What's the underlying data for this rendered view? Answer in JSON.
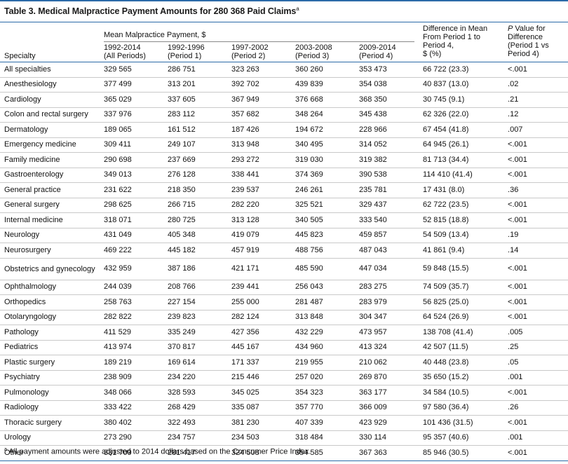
{
  "title": "Table 3. Medical Malpractice Payment Amounts for 280 368 Paid Claims",
  "title_marker": "a",
  "header": {
    "specialty": "Specialty",
    "group": "Mean Malpractice Payment, $",
    "cols": [
      {
        "line1": "1992-2014",
        "line2": "(All Periods)"
      },
      {
        "line1": "1992-1996",
        "line2": "(Period 1)"
      },
      {
        "line1": "1997-2002",
        "line2": "(Period 2)"
      },
      {
        "line1": "2003-2008",
        "line2": "(Period 3)"
      },
      {
        "line1": "2009-2014",
        "line2": "(Period 4)"
      }
    ],
    "diff": {
      "l1": "Difference in Mean",
      "l2": "From Period 1 to",
      "l3": "Period 4,",
      "l4": "$ (%)"
    },
    "pval": {
      "italic": "P",
      "l1": " Value for",
      "l2": "Difference",
      "l3": "(Period 1 vs",
      "l4": "Period 4)"
    }
  },
  "rows": [
    {
      "specialty": "All specialties",
      "v": [
        "329 565",
        "286 751",
        "323 263",
        "360 260",
        "353 473"
      ],
      "diff": "66 722 (23.3)",
      "p": "<.001"
    },
    {
      "specialty": "Anesthesiology",
      "v": [
        "377 499",
        "313 201",
        "392 702",
        "439 839",
        "354 038"
      ],
      "diff": "40 837 (13.0)",
      "p": ".02"
    },
    {
      "specialty": "Cardiology",
      "v": [
        "365 029",
        "337 605",
        "367 949",
        "376 668",
        "368 350"
      ],
      "diff": "30 745 (9.1)",
      "p": ".21"
    },
    {
      "specialty": "Colon and rectal surgery",
      "v": [
        "337 976",
        "283 112",
        "357 682",
        "348 264",
        "345 438"
      ],
      "diff": "62 326 (22.0)",
      "p": ".12"
    },
    {
      "specialty": "Dermatology",
      "v": [
        "189 065",
        "161 512",
        "187 426",
        "194 672",
        "228 966"
      ],
      "diff": "67 454 (41.8)",
      "p": ".007"
    },
    {
      "specialty": "Emergency medicine",
      "v": [
        "309 411",
        "249 107",
        "313 948",
        "340 495",
        "314 052"
      ],
      "diff": "64 945 (26.1)",
      "p": "<.001"
    },
    {
      "specialty": "Family medicine",
      "v": [
        "290 698",
        "237 669",
        "293 272",
        "319 030",
        "319 382"
      ],
      "diff": "81 713 (34.4)",
      "p": "<.001"
    },
    {
      "specialty": "Gastroenterology",
      "v": [
        "349 013",
        "276 128",
        "338 441",
        "374 369",
        "390 538"
      ],
      "diff": "114 410 (41.4)",
      "p": "<.001"
    },
    {
      "specialty": "General practice",
      "v": [
        "231 622",
        "218 350",
        "239 537",
        "246 261",
        "235 781"
      ],
      "diff": "17 431 (8.0)",
      "p": ".36"
    },
    {
      "specialty": "General surgery",
      "v": [
        "298 625",
        "266 715",
        "282 220",
        "325 521",
        "329 437"
      ],
      "diff": "62 722 (23.5)",
      "p": "<.001"
    },
    {
      "specialty": "Internal medicine",
      "v": [
        "318 071",
        "280 725",
        "313 128",
        "340 505",
        "333 540"
      ],
      "diff": "52 815 (18.8)",
      "p": "<.001"
    },
    {
      "specialty": "Neurology",
      "v": [
        "431 049",
        "405 348",
        "419 079",
        "445 823",
        "459 857"
      ],
      "diff": "54 509 (13.4)",
      "p": ".19"
    },
    {
      "specialty": "Neurosurgery",
      "v": [
        "469 222",
        "445 182",
        "457 919",
        "488 756",
        "487 043"
      ],
      "diff": "41 861 (9.4)",
      "p": ".14"
    },
    {
      "specialty": "Obstetrics and gynecology",
      "v": [
        "432 959",
        "387 186",
        "421 171",
        "485 590",
        "447 034"
      ],
      "diff": "59 848 (15.5)",
      "p": "<.001"
    },
    {
      "specialty": "Ophthalmology",
      "v": [
        "244 039",
        "208 766",
        "239 441",
        "256 043",
        "283 275"
      ],
      "diff": "74 509 (35.7)",
      "p": "<.001"
    },
    {
      "specialty": "Orthopedics",
      "v": [
        "258 763",
        "227 154",
        "255 000",
        "281 487",
        "283 979"
      ],
      "diff": "56 825 (25.0)",
      "p": "<.001"
    },
    {
      "specialty": "Otolaryngology",
      "v": [
        "282 822",
        "239 823",
        "282 124",
        "313 848",
        "304 347"
      ],
      "diff": "64 524 (26.9)",
      "p": "<.001"
    },
    {
      "specialty": "Pathology",
      "v": [
        "411 529",
        "335 249",
        "427 356",
        "432 229",
        "473 957"
      ],
      "diff": "138 708 (41.4)",
      "p": ".005"
    },
    {
      "specialty": "Pediatrics",
      "v": [
        "413 974",
        "370 817",
        "445 167",
        "434 960",
        "413 324"
      ],
      "diff": "42 507 (11.5)",
      "p": ".25"
    },
    {
      "specialty": "Plastic surgery",
      "v": [
        "189 219",
        "169 614",
        "171 337",
        "219 955",
        "210 062"
      ],
      "diff": "40 448 (23.8)",
      "p": ".05"
    },
    {
      "specialty": "Psychiatry",
      "v": [
        "238 909",
        "234 220",
        "215 446",
        "257 020",
        "269 870"
      ],
      "diff": "35 650 (15.2)",
      "p": ".001"
    },
    {
      "specialty": "Pulmonology",
      "v": [
        "348 066",
        "328 593",
        "345 025",
        "354 323",
        "363 177"
      ],
      "diff": "34 584 (10.5)",
      "p": "<.001"
    },
    {
      "specialty": "Radiology",
      "v": [
        "333 422",
        "268 429",
        "335 087",
        "357 770",
        "366 009"
      ],
      "diff": "97 580 (36.4)",
      "p": ".26"
    },
    {
      "specialty": "Thoracic surgery",
      "v": [
        "380 402",
        "322 493",
        "381 230",
        "407 339",
        "423 929"
      ],
      "diff": "101 436 (31.5)",
      "p": "<.001"
    },
    {
      "specialty": "Urology",
      "v": [
        "273 290",
        "234 757",
        "234 503",
        "318 484",
        "330 114"
      ],
      "diff": "95 357 (40.6)",
      "p": ".001"
    },
    {
      "specialty": "Other",
      "v": [
        "331 709",
        "281 417",
        "324 508",
        "354 585",
        "367 363"
      ],
      "diff": "85 946 (30.5)",
      "p": "<.001"
    }
  ],
  "footnote": {
    "marker": "a",
    "text": " All payment amounts were adjusted to 2014 dollars based on the Consumer Price Index."
  },
  "colors": {
    "accent": "#2b6aa8",
    "rule": "#c9c9c9"
  }
}
